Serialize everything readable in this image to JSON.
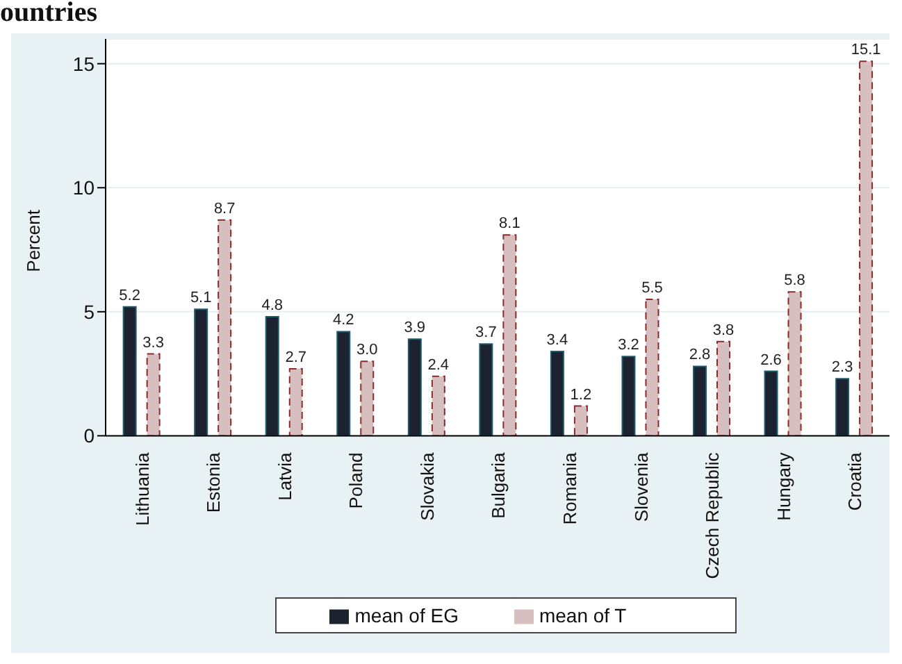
{
  "chart_data": {
    "type": "bar",
    "title": "ountries",
    "ylabel": "Percent",
    "categories": [
      "Lithuania",
      "Estonia",
      "Latvia",
      "Poland",
      "Slovakia",
      "Bulgaria",
      "Romania",
      "Slovenia",
      "Czech Republic",
      "Hungary",
      "Croatia"
    ],
    "series": [
      {
        "name": "mean of EG",
        "color": "#1c2230",
        "values": [
          5.2,
          5.1,
          4.8,
          4.2,
          3.9,
          3.7,
          3.4,
          3.2,
          2.8,
          2.6,
          2.3
        ],
        "value_labels": [
          "5.2",
          "5.1",
          "4.8",
          "4.2",
          "3.9",
          "3.7",
          "3.4",
          "3.2",
          "2.8",
          "2.6",
          "2.3"
        ]
      },
      {
        "name": "mean of T",
        "color": "#d8bfbf",
        "line_style": "dashed",
        "values": [
          3.3,
          8.7,
          2.7,
          3.0,
          2.4,
          8.1,
          1.2,
          5.5,
          3.8,
          5.8,
          15.1
        ],
        "value_labels": [
          "3.3",
          "8.7",
          "2.7",
          "3.0",
          "2.4",
          "8.1",
          "1.2",
          "5.5",
          "3.8",
          "5.8",
          "15.1"
        ]
      }
    ],
    "ylim": [
      0,
      16
    ],
    "yticks": [
      0,
      5,
      10,
      15
    ],
    "grid": "y",
    "legend": "bottom"
  }
}
